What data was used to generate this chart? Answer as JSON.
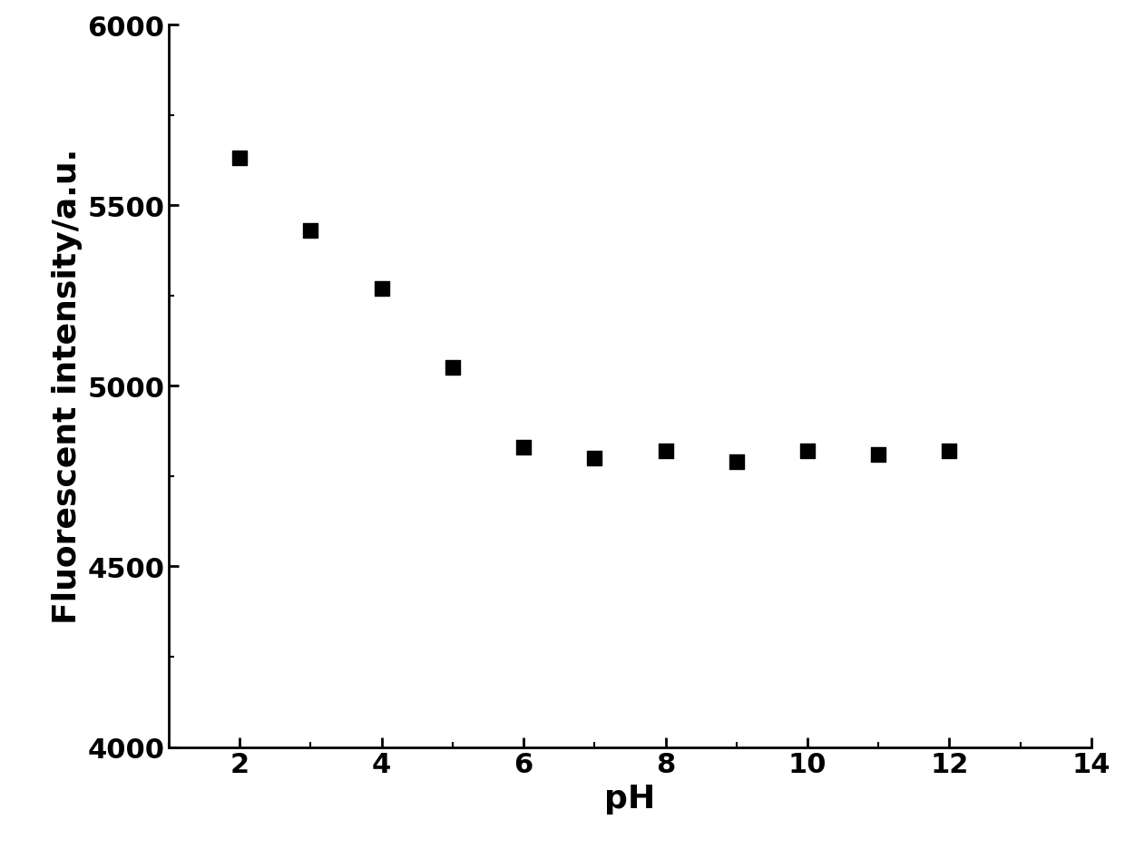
{
  "x": [
    2,
    3,
    4,
    5,
    6,
    7,
    8,
    9,
    10,
    11,
    12
  ],
  "y": [
    5630,
    5430,
    5270,
    5050,
    4830,
    4800,
    4820,
    4790,
    4820,
    4810,
    4820
  ],
  "marker": "s",
  "marker_color": "#000000",
  "marker_size": 120,
  "xlabel": "pH",
  "ylabel": "Fluorescent intensity/a.u.",
  "xlim": [
    1,
    14
  ],
  "ylim": [
    4000,
    6000
  ],
  "xticks": [
    2,
    4,
    6,
    8,
    10,
    12,
    14
  ],
  "yticks": [
    4000,
    4500,
    5000,
    5500,
    6000
  ],
  "xlabel_fontsize": 26,
  "ylabel_fontsize": 26,
  "tick_fontsize": 22,
  "xlabel_fontweight": "bold",
  "ylabel_fontweight": "bold"
}
